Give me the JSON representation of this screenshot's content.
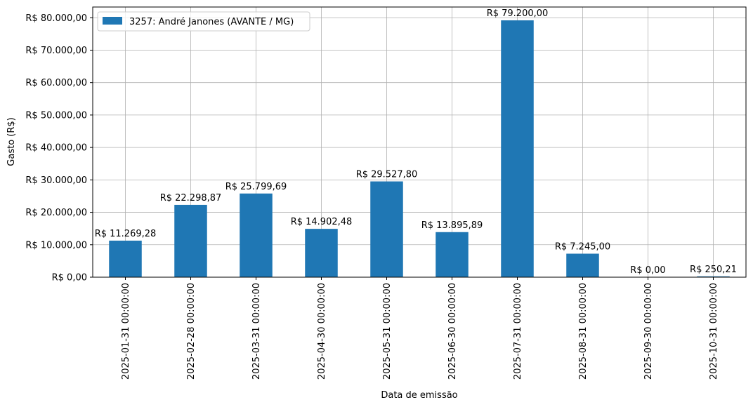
{
  "chart_data": {
    "type": "bar",
    "xlabel": "Data de emissão",
    "ylabel": "Gasto (R$)",
    "ylim": [
      0,
      83300
    ],
    "yticks": [
      0,
      10000,
      20000,
      30000,
      40000,
      50000,
      60000,
      70000,
      80000
    ],
    "ytick_labels": [
      "R$ 0,00",
      "R$ 10.000,00",
      "R$ 20.000,00",
      "R$ 30.000,00",
      "R$ 40.000,00",
      "R$ 50.000,00",
      "R$ 60.000,00",
      "R$ 70.000,00",
      "R$ 80.000,00"
    ],
    "grid": true,
    "legend_position": "upper-left",
    "categories": [
      "2025-01-31 00:00:00",
      "2025-02-28 00:00:00",
      "2025-03-31 00:00:00",
      "2025-04-30 00:00:00",
      "2025-05-31 00:00:00",
      "2025-06-30 00:00:00",
      "2025-07-31 00:00:00",
      "2025-08-31 00:00:00",
      "2025-09-30 00:00:00",
      "2025-10-31 00:00:00"
    ],
    "series": [
      {
        "name": "3257: André Janones (AVANTE / MG)",
        "color": "#1f77b4",
        "values": [
          11269.28,
          22298.87,
          25799.69,
          14902.48,
          29527.8,
          13895.89,
          79200.0,
          7245.0,
          0.0,
          250.21
        ],
        "data_labels": [
          "R$ 11.269,28",
          "R$ 22.298,87",
          "R$ 25.799,69",
          "R$ 14.902,48",
          "R$ 29.527,80",
          "R$ 13.895,89",
          "R$ 79.200,00",
          "R$ 7.245,00",
          "R$ 0,00",
          "R$ 250,21"
        ]
      }
    ]
  }
}
